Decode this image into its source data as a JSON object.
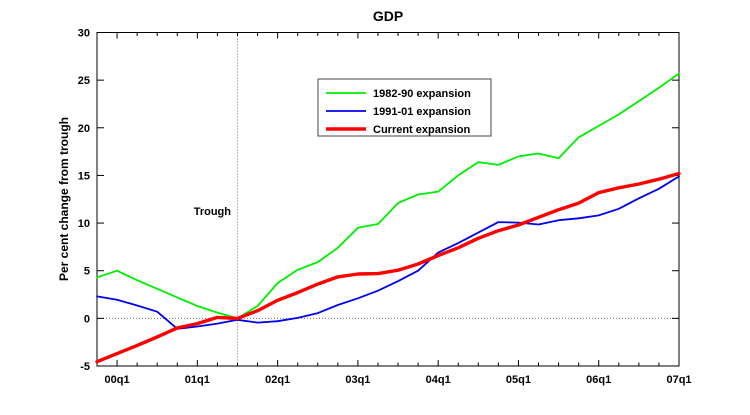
{
  "chart_data": {
    "type": "line",
    "title": "GDP",
    "ylabel": "Per cent change from trough",
    "trough_annotation": "Trough",
    "legend_position": "top-center",
    "grid": "off",
    "ylim": [
      -5,
      30
    ],
    "yticks": [
      -5,
      0,
      5,
      10,
      15,
      20,
      25,
      30
    ],
    "x_offsets_from_trough": [
      -7,
      -6,
      -5,
      -4,
      -3,
      -2,
      -1,
      0,
      1,
      2,
      3,
      4,
      5,
      6,
      7,
      8,
      9,
      10,
      11,
      12,
      13,
      14,
      15,
      16,
      17,
      18,
      19,
      20,
      21,
      22
    ],
    "x_tick_labels": [
      "00q1",
      "01q1",
      "02q1",
      "03q1",
      "04q1",
      "05q1",
      "06q1",
      "07q1"
    ],
    "x_tick_offsets": [
      -6,
      -2,
      2,
      6,
      10,
      14,
      18,
      22
    ],
    "reference_lines": {
      "zero_y": 0,
      "trough_x_offset": 0
    },
    "axis_color": "#000000",
    "reference_line_color": "#777777",
    "series": [
      {
        "name": "1982-90 expansion",
        "color": "#00ee00",
        "width": 1.8,
        "values": [
          4.3,
          5.0,
          4.0,
          3.1,
          2.2,
          1.3,
          0.6,
          0.0,
          1.3,
          3.7,
          5.1,
          5.9,
          7.4,
          9.5,
          9.9,
          12.1,
          13.0,
          13.3,
          15.0,
          16.4,
          16.1,
          17.0,
          17.3,
          16.8,
          19.0,
          20.2,
          21.4,
          22.8,
          24.2,
          25.7
        ]
      },
      {
        "name": "1991-01 expansion",
        "color": "#0000ee",
        "width": 1.8,
        "values": [
          2.3,
          1.95,
          1.35,
          0.7,
          -1.1,
          -0.85,
          -0.55,
          -0.15,
          -0.45,
          -0.3,
          0.05,
          0.55,
          1.4,
          2.1,
          2.9,
          3.9,
          5.0,
          6.9,
          7.9,
          9.0,
          10.1,
          10.05,
          9.85,
          10.3,
          10.5,
          10.8,
          11.5,
          12.6,
          13.6,
          14.9
        ]
      },
      {
        "name": "Current expansion",
        "color": "#ff0000",
        "width": 3.4,
        "values": [
          -4.55,
          -3.7,
          -2.85,
          -1.95,
          -1.0,
          -0.55,
          0.1,
          0.0,
          0.8,
          1.9,
          2.7,
          3.6,
          4.35,
          4.65,
          4.7,
          5.05,
          5.7,
          6.6,
          7.4,
          8.4,
          9.2,
          9.8,
          10.6,
          11.4,
          12.1,
          13.2,
          13.7,
          14.1,
          14.6,
          15.2
        ]
      }
    ]
  }
}
